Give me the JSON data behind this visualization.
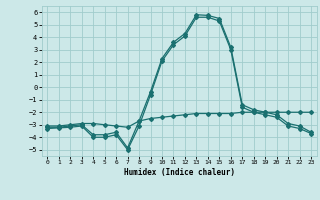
{
  "xlabel": "Humidex (Indice chaleur)",
  "xlim": [
    -0.5,
    23.5
  ],
  "ylim": [
    -5.5,
    6.5
  ],
  "xticks": [
    0,
    1,
    2,
    3,
    4,
    5,
    6,
    7,
    8,
    9,
    10,
    11,
    12,
    13,
    14,
    15,
    16,
    17,
    18,
    19,
    20,
    21,
    22,
    23
  ],
  "yticks": [
    -5,
    -4,
    -3,
    -2,
    -1,
    0,
    1,
    2,
    3,
    4,
    5,
    6
  ],
  "bg_color": "#cce8e8",
  "grid_color": "#a0cccc",
  "line_color": "#1a7070",
  "line1_x": [
    0,
    1,
    2,
    3,
    4,
    5,
    6,
    7,
    8,
    9,
    10,
    11,
    12,
    13,
    14,
    15,
    16,
    17,
    18,
    19,
    20,
    21,
    22,
    23
  ],
  "line1_y": [
    -3.2,
    -3.2,
    -3.1,
    -3.0,
    -3.8,
    -3.8,
    -3.6,
    -4.85,
    -2.7,
    -0.35,
    2.3,
    3.6,
    4.3,
    5.8,
    5.75,
    5.5,
    3.2,
    -1.4,
    -1.8,
    -2.0,
    -2.2,
    -2.9,
    -3.1,
    -3.6
  ],
  "line2_x": [
    0,
    1,
    2,
    3,
    4,
    5,
    6,
    7,
    8,
    9,
    10,
    11,
    12,
    13,
    14,
    15,
    16,
    17,
    18,
    19,
    20,
    21,
    22,
    23
  ],
  "line2_y": [
    -3.1,
    -3.1,
    -3.0,
    -2.9,
    -2.9,
    -3.0,
    -3.1,
    -3.2,
    -2.7,
    -2.5,
    -2.4,
    -2.3,
    -2.2,
    -2.1,
    -2.1,
    -2.1,
    -2.1,
    -2.0,
    -2.0,
    -2.0,
    -2.0,
    -2.0,
    -2.0,
    -2.0
  ],
  "line3_x": [
    0,
    1,
    2,
    3,
    4,
    5,
    6,
    7,
    8,
    9,
    10,
    11,
    12,
    13,
    14,
    15,
    16,
    17,
    18,
    19,
    20,
    21,
    22,
    23
  ],
  "line3_y": [
    -3.3,
    -3.25,
    -3.2,
    -3.1,
    -4.0,
    -4.0,
    -3.8,
    -5.0,
    -3.1,
    -0.6,
    2.1,
    3.4,
    4.1,
    5.6,
    5.6,
    5.3,
    3.0,
    -1.6,
    -2.0,
    -2.2,
    -2.4,
    -3.1,
    -3.3,
    -3.7
  ]
}
